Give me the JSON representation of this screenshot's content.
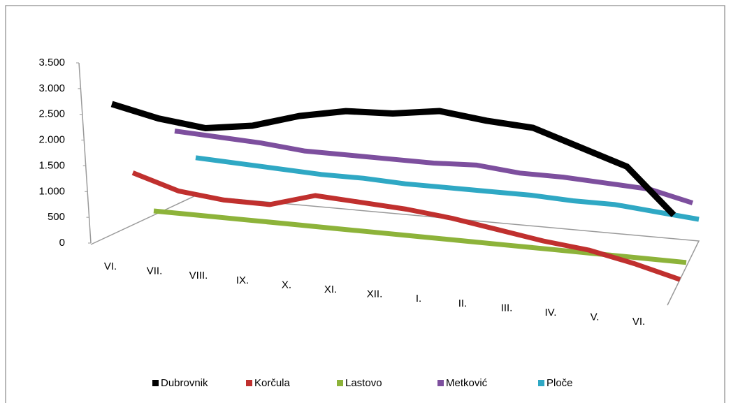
{
  "chart_data": {
    "type": "line3d",
    "categories": [
      "VI.",
      "VII.",
      "VIII.",
      "IX.",
      "X.",
      "XI.",
      "XII.",
      "I.",
      "II.",
      "III.",
      "IV.",
      "V.",
      "VI."
    ],
    "series": [
      {
        "name": "Dubrovnik",
        "color": "#000000",
        "values": [
          2700,
          2500,
          2400,
          2550,
          2850,
          3050,
          3100,
          3250,
          3150,
          3100,
          2800,
          2500,
          1600
        ]
      },
      {
        "name": "Korčula",
        "color": "#c0302e",
        "values": [
          1150,
          850,
          750,
          750,
          1050,
          1000,
          950,
          850,
          700,
          550,
          450,
          250,
          0
        ]
      },
      {
        "name": "Lastovo",
        "color": "#8db33a",
        "values": [
          100,
          100,
          100,
          100,
          100,
          100,
          100,
          100,
          100,
          100,
          100,
          100,
          100
        ]
      },
      {
        "name": "Metković",
        "color": "#7d4f9e",
        "values": [
          1900,
          1850,
          1800,
          1700,
          1700,
          1700,
          1700,
          1750,
          1650,
          1650,
          1600,
          1550,
          1300
        ]
      },
      {
        "name": "Ploče",
        "color": "#2fa8c4",
        "values": [
          1050,
          1000,
          950,
          900,
          900,
          850,
          850,
          850,
          850,
          800,
          800,
          700,
          600
        ]
      }
    ],
    "ylim": [
      0,
      3500
    ],
    "yticks": [
      0,
      500,
      {
        "value": 1000,
        "label": "1.000"
      },
      {
        "value": 1500,
        "label": "1.500"
      },
      {
        "value": 2000,
        "label": "2.000"
      },
      {
        "value": 2500,
        "label": "2.500"
      },
      {
        "value": 3000,
        "label": "3.000"
      },
      {
        "value": 3500,
        "label": "3.500"
      }
    ],
    "legend": "bottom"
  }
}
